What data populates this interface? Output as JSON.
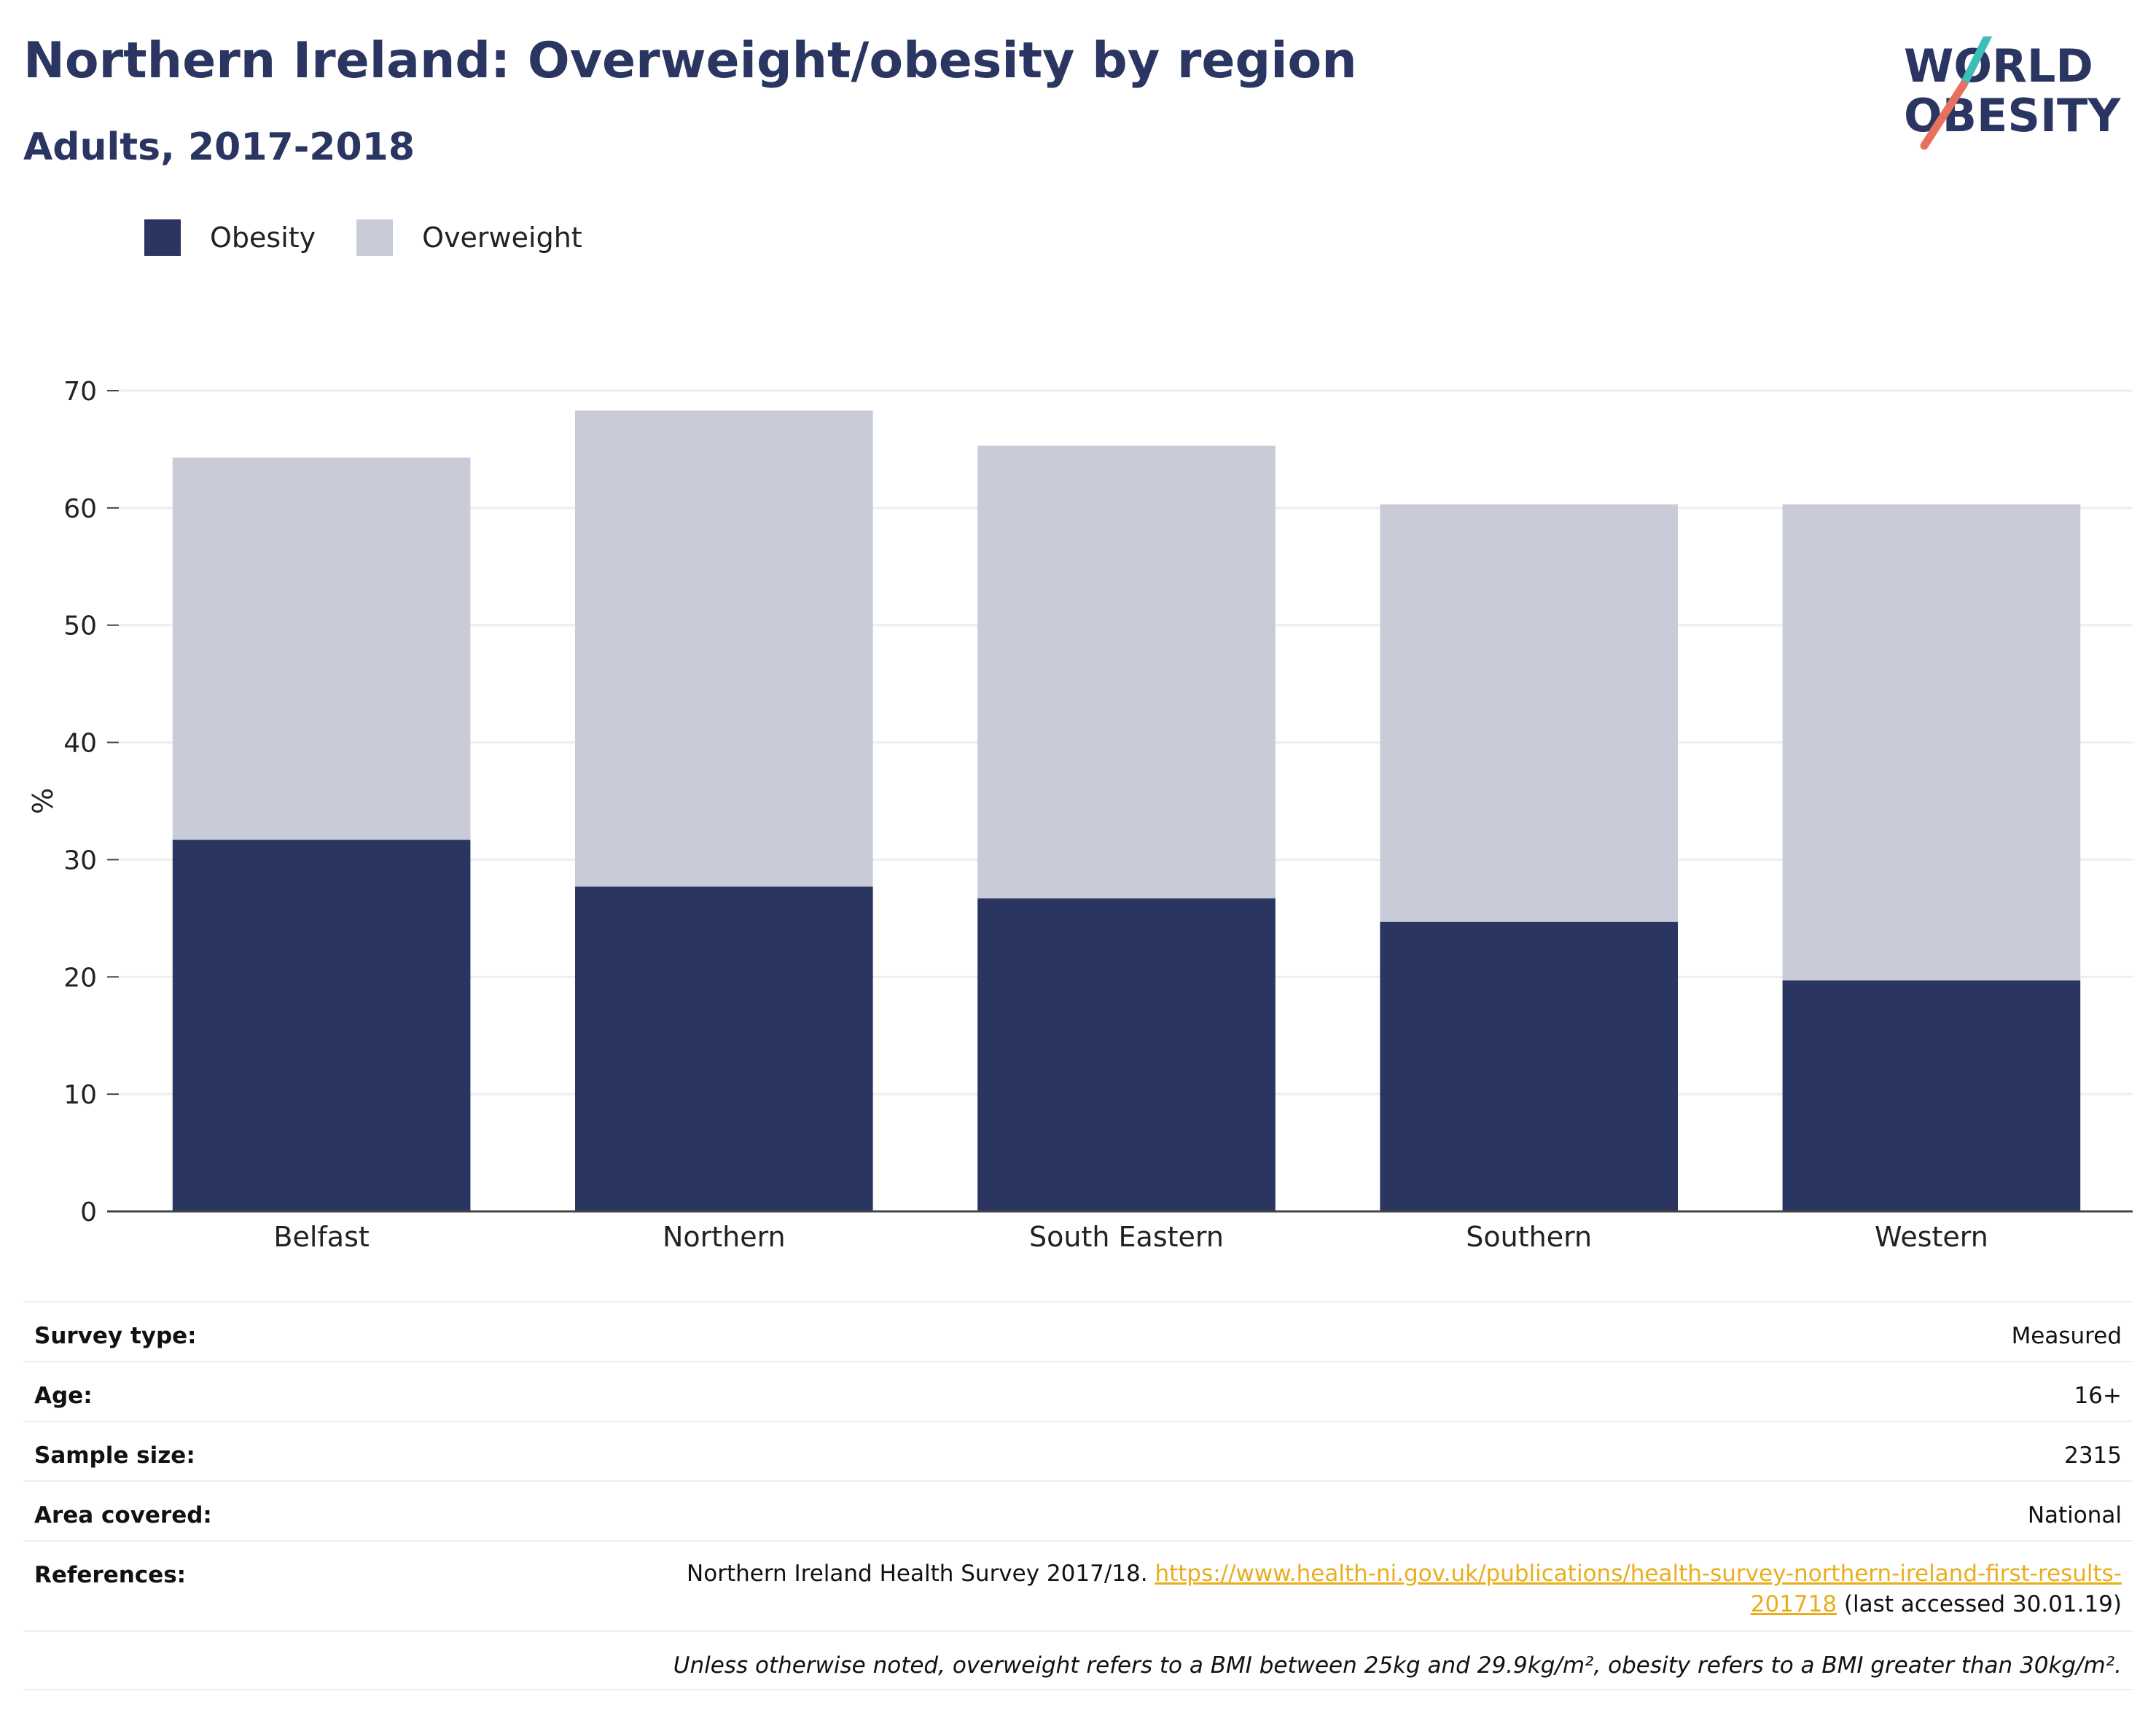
{
  "header": {
    "title": "Northern Ireland: Overweight/obesity by region",
    "subtitle": "Adults, 2017-2018"
  },
  "logo": {
    "line1": "WORLD",
    "line2": "OBESITY",
    "colors": {
      "text": "#2a3561",
      "slash_top": "#3dbfb8",
      "slash_bottom": "#e8705e"
    }
  },
  "legend": [
    {
      "label": "Obesity",
      "color": "#2a3561"
    },
    {
      "label": "Overweight",
      "color": "#c9ccd8"
    }
  ],
  "chart_data": {
    "type": "bar",
    "stacked": true,
    "categories": [
      "Belfast",
      "Northern",
      "South Eastern",
      "Southern",
      "Western"
    ],
    "series": [
      {
        "name": "Obesity",
        "values": [
          31.7,
          27.7,
          26.7,
          24.7,
          19.7
        ],
        "color": "#2a3561"
      },
      {
        "name": "Overweight",
        "values": [
          32.6,
          40.6,
          38.6,
          35.6,
          40.6
        ],
        "color": "#c9ccd8"
      }
    ],
    "title": "Northern Ireland: Overweight/obesity by region",
    "subtitle": "Adults, 2017-2018",
    "xlabel": "",
    "ylabel": "%",
    "ylim": [
      0,
      70
    ],
    "yticks": [
      0,
      10,
      20,
      30,
      40,
      50,
      60,
      70
    ],
    "grid": true,
    "legend_position": "top-left"
  },
  "details": {
    "rows": [
      {
        "label": "Survey type:",
        "value": "Measured"
      },
      {
        "label": "Age:",
        "value": "16+"
      },
      {
        "label": "Sample size:",
        "value": "2315"
      },
      {
        "label": "Area covered:",
        "value": "National"
      }
    ],
    "references": {
      "label": "References:",
      "prefix": "Northern Ireland Health Survey 2017/18.",
      "link_part1": "https://www.health-ni.gov.uk/publications/health-survey-northern-ireland-first-results-",
      "link_part2": "201718",
      "suffix": "(last accessed 30.01.19)"
    },
    "note": "Unless otherwise noted, overweight refers to a BMI between 25kg and 29.9kg/m², obesity refers to a BMI greater than 30kg/m²."
  }
}
